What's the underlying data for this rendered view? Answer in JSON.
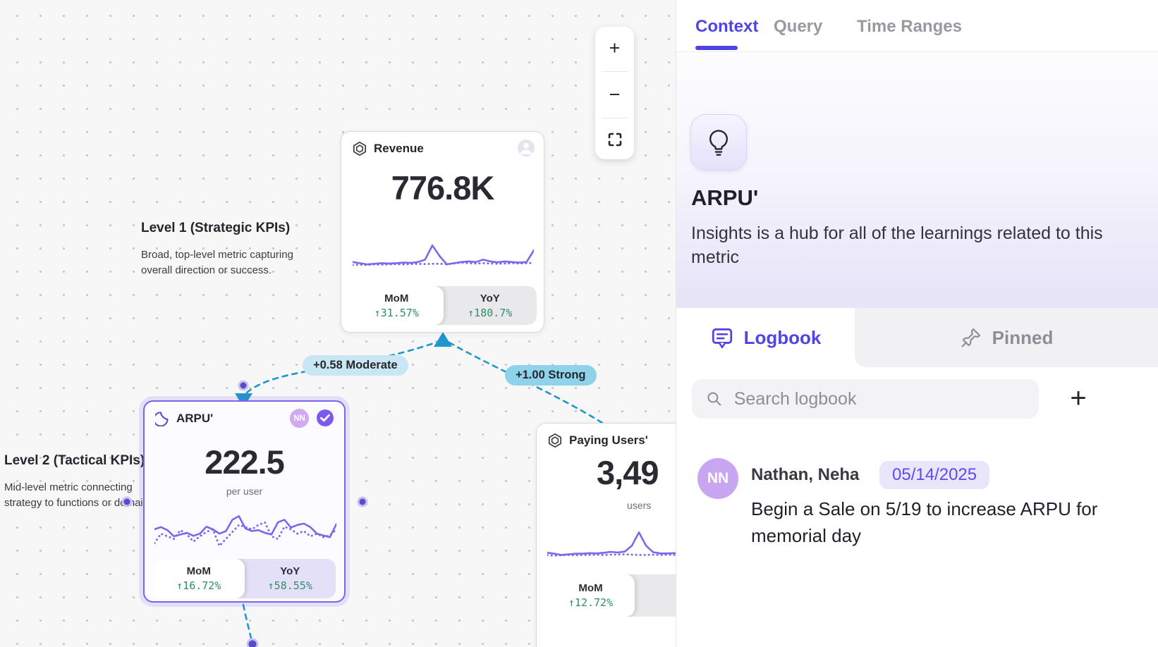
{
  "canvas": {
    "zoom_toolbar": {
      "zoom_in": "+",
      "zoom_out": "−",
      "fullscreen_icon": "corner-brackets"
    },
    "levels": [
      {
        "title": "Level 1 (Strategic KPIs)",
        "desc_line1": "Broad, top-level metric capturing",
        "desc_line2": "overall direction or success."
      },
      {
        "title": "Level 2 (Tactical KPIs)",
        "desc_line1": "Mid-level metric connecting",
        "desc_line2": "strategy to functions or domains."
      }
    ],
    "cards": {
      "revenue": {
        "title": "Revenue",
        "value": "776.8K",
        "mom_label": "MoM",
        "mom_value": "↑31.57%",
        "yoy_label": "YoY",
        "yoy_value": "↑180.7%"
      },
      "arpu": {
        "title": "ARPU'",
        "value": "222.5",
        "unit": "per user",
        "badge": "NN",
        "mom_label": "MoM",
        "mom_value": "↑16.72%",
        "yoy_label": "YoY",
        "yoy_value": "↑58.55%"
      },
      "paying_users": {
        "title": "Paying Users'",
        "value": "3,49",
        "unit": "users",
        "mom_label": "MoM",
        "mom_value": "↑12.72%"
      }
    },
    "edges": [
      {
        "label": "+0.58 Moderate",
        "strength": "moderate"
      },
      {
        "label": "+1.00 Strong",
        "strength": "strong"
      }
    ],
    "sparklines": {
      "revenue": {
        "solid": [
          0.22,
          0.18,
          0.14,
          0.16,
          0.18,
          0.17,
          0.18,
          0.2,
          0.19,
          0.22,
          0.3,
          0.78,
          0.42,
          0.14,
          0.18,
          0.22,
          0.24,
          0.22,
          0.3,
          0.24,
          0.21,
          0.24,
          0.22,
          0.2,
          0.22,
          0.62
        ],
        "dotted": [
          0.12,
          0.13,
          0.12,
          0.14,
          0.13,
          0.14,
          0.15,
          0.14,
          0.15,
          0.16,
          0.15,
          0.16,
          0.16,
          0.15,
          0.17,
          0.2,
          0.18,
          0.17,
          0.18,
          0.17,
          0.16,
          0.17,
          0.18,
          0.17,
          0.18,
          0.19
        ]
      },
      "arpu": {
        "solid": [
          0.5,
          0.55,
          0.48,
          0.34,
          0.38,
          0.42,
          0.35,
          0.4,
          0.56,
          0.5,
          0.4,
          0.46,
          0.72,
          0.8,
          0.52,
          0.46,
          0.48,
          0.42,
          0.38,
          0.66,
          0.72,
          0.54,
          0.6,
          0.63,
          0.55,
          0.4,
          0.36,
          0.32,
          0.62
        ],
        "dotted": [
          0.18,
          0.4,
          0.34,
          0.28,
          0.48,
          0.38,
          0.22,
          0.34,
          0.44,
          0.5,
          0.12,
          0.28,
          0.44,
          0.6,
          0.55,
          0.5,
          0.6,
          0.66,
          0.34,
          0.28,
          0.56,
          0.5,
          0.4,
          0.46,
          0.34,
          0.4,
          0.32,
          0.36,
          0.5
        ]
      },
      "paying_users": {
        "solid": [
          0.22,
          0.19,
          0.15,
          0.17,
          0.19,
          0.19,
          0.21,
          0.2,
          0.22,
          0.25,
          0.23,
          0.26,
          0.45,
          0.88,
          0.45,
          0.24,
          0.2,
          0.2,
          0.21,
          0.2,
          0.21,
          0.2,
          0.21,
          0.2,
          0.21,
          0.22
        ],
        "dotted": [
          0.14,
          0.13,
          0.14,
          0.15,
          0.14,
          0.15,
          0.15,
          0.16,
          0.15,
          0.16,
          0.16,
          0.17,
          0.16,
          0.15,
          0.15,
          0.16,
          0.15,
          0.16,
          0.15,
          0.16,
          0.15,
          0.16,
          0.15,
          0.16,
          0.15,
          0.16
        ]
      }
    }
  },
  "panel": {
    "tabs": [
      {
        "label": "Context"
      },
      {
        "label": "Query"
      },
      {
        "label": "Time Ranges"
      }
    ],
    "active_tab": "Context",
    "hero": {
      "icon": "lightbulb-icon",
      "title": "ARPU'",
      "subtitle": "Insights is a hub for all of the learnings related to this metric"
    },
    "subtabs": [
      {
        "label": "Logbook",
        "icon": "logbook-bubble-icon"
      },
      {
        "label": "Pinned",
        "icon": "pin-icon"
      }
    ],
    "search": {
      "placeholder": "Search logbook",
      "add_label": "+"
    },
    "entries": [
      {
        "avatar": "NN",
        "author": "Nathan, Neha",
        "date": "05/14/2025",
        "message": "Begin a Sale on 5/19 to increase ARPU for memorial day"
      }
    ]
  },
  "colors": {
    "accent_purple": "#5044e6",
    "spark_purple": "#7b68ee",
    "selected_border": "#7d63ee",
    "edge_blue": "#1f96cc",
    "pill_moderate": "#c9e6f5",
    "pill_strong": "#8fd3eb",
    "positive_green": "#2e8f68",
    "muted_gray": "#8f8e97",
    "canvas_bg": "#f7f7f8"
  }
}
